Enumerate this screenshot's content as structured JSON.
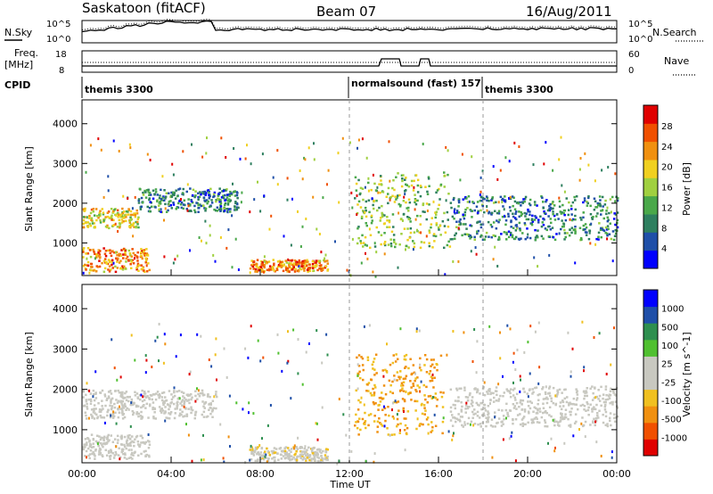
{
  "header": {
    "station": "Saskatoon (fitACF)",
    "beam": "Beam 07",
    "date": "16/Aug/2011"
  },
  "noise_panel": {
    "left_label": "N.Sky",
    "right_label": "N.Search",
    "left_ticks": [
      "10^5",
      "10^0"
    ],
    "right_ticks": [
      "10^5",
      "10^0"
    ]
  },
  "freq_panel": {
    "left_label_1": "Freq.",
    "left_label_2": "[MHz]",
    "right_label": "Nave",
    "left_ticks": [
      "18",
      "8"
    ],
    "right_ticks": [
      "60",
      "0"
    ]
  },
  "cpid": {
    "label": "CPID",
    "segments": [
      {
        "name": "themis 3300",
        "start_hour": 0
      },
      {
        "name": "normalsound (fast) 157",
        "start_hour": 12
      },
      {
        "name": "themis 3300",
        "start_hour": 18
      }
    ]
  },
  "colors": {
    "power_scale": [
      "#0000ff",
      "#1f4fa8",
      "#2e7f5f",
      "#4aa84a",
      "#a0d040",
      "#f0d020",
      "#f09010",
      "#f05000",
      "#e00000"
    ],
    "velocity_scale": [
      "#e00000",
      "#f05000",
      "#f09010",
      "#f0c020",
      "#c8c8c0",
      "#c8c8c0",
      "#50c030",
      "#2e8f4f",
      "#1f4fa8",
      "#0000ff"
    ],
    "ground_scatter": "#c8c8c0"
  },
  "chart_data": [
    {
      "type": "heatmap",
      "title": "",
      "xlabel": "",
      "ylabel": "Slant Range [km]",
      "xlim": [
        0,
        24
      ],
      "ylim": [
        180,
        4600
      ],
      "y_ticks": [
        "1000",
        "2000",
        "3000",
        "4000"
      ],
      "colorbar": {
        "label": "Power [dB]",
        "ticks": [
          "4",
          "8",
          "12",
          "16",
          "20",
          "24",
          "28"
        ],
        "range": [
          0,
          30
        ]
      },
      "scatter_regions": [
        {
          "t0": 0.0,
          "t1": 3.0,
          "r0": 300,
          "r1": 900,
          "level": 22
        },
        {
          "t0": 0.0,
          "t1": 2.5,
          "r0": 1400,
          "r1": 1900,
          "level": 18
        },
        {
          "t0": 2.5,
          "t1": 7.0,
          "r0": 1800,
          "r1": 2400,
          "level": 8
        },
        {
          "t0": 7.5,
          "t1": 11.0,
          "r0": 300,
          "r1": 600,
          "level": 22
        },
        {
          "t0": 12.2,
          "t1": 16.5,
          "r0": 900,
          "r1": 2800,
          "level": 14
        },
        {
          "t0": 16.5,
          "t1": 24.0,
          "r0": 1100,
          "r1": 2200,
          "level": 8
        }
      ]
    },
    {
      "type": "heatmap",
      "title": "",
      "xlabel": "Time UT",
      "ylabel": "Slant Range [km]",
      "xlim": [
        0,
        24
      ],
      "ylim": [
        180,
        4600
      ],
      "x_ticks": [
        "00:00",
        "04:00",
        "08:00",
        "12:00",
        "16:00",
        "20:00",
        "00:00"
      ],
      "y_ticks": [
        "1000",
        "2000",
        "3000",
        "4000"
      ],
      "colorbar": {
        "label": "Velocity [m s^-1]",
        "ticks": [
          "-1000",
          "-500",
          "-100",
          "-25",
          "25",
          "100",
          "500",
          "1000"
        ],
        "range": [
          -1000,
          1000
        ]
      },
      "scatter_regions": [
        {
          "t0": 0.0,
          "t1": 3.0,
          "r0": 300,
          "r1": 900,
          "level": 50
        },
        {
          "t0": 0.0,
          "t1": 6.0,
          "r0": 1300,
          "r1": 2000,
          "level": 0
        },
        {
          "t0": 7.5,
          "t1": 11.0,
          "r0": 250,
          "r1": 600,
          "level": -100
        },
        {
          "t0": 12.2,
          "t1": 16.2,
          "r0": 900,
          "r1": 2900,
          "level": -400
        },
        {
          "t0": 16.5,
          "t1": 24.0,
          "r0": 1100,
          "r1": 2100,
          "level": 0
        }
      ]
    }
  ]
}
